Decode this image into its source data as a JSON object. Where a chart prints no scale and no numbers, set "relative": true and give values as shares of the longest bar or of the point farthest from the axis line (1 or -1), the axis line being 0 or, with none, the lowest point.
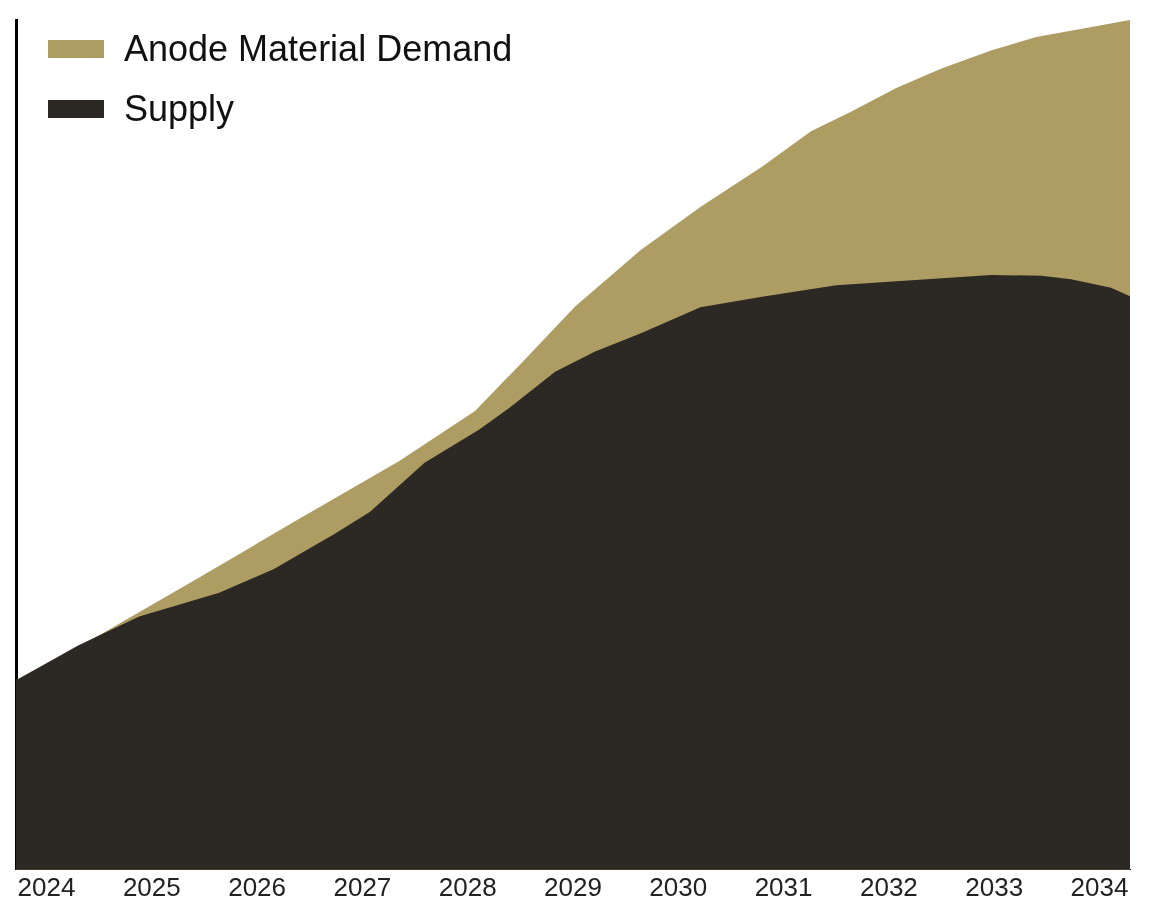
{
  "chart_data": {
    "type": "area",
    "relative": true,
    "legend": "top left",
    "grid": false,
    "xlim": [
      2023.71,
      2034.29
    ],
    "xticks": [
      2024,
      2025,
      2026,
      2027,
      2028,
      2029,
      2030,
      2031,
      2032,
      2033,
      2034
    ],
    "series": [
      {
        "name": "Anode Material Demand",
        "color": "#ad9d63",
        "x": [
          2023.71,
          2024.5,
          2025.45,
          2026.4,
          2027.35,
          2028.07,
          2028.5,
          2029.02,
          2029.64,
          2030.21,
          2030.78,
          2031.26,
          2031.64,
          2032.07,
          2032.5,
          2032.97,
          2033.4,
          2034.29
        ],
        "values": [
          0.223,
          0.276,
          0.344,
          0.413,
          0.481,
          0.54,
          0.595,
          0.663,
          0.729,
          0.78,
          0.826,
          0.869,
          0.892,
          0.92,
          0.943,
          0.964,
          0.98,
          1.0
        ]
      },
      {
        "name": "Supply",
        "color": "#2c2924",
        "x": [
          2023.71,
          2024.3,
          2024.88,
          2025.64,
          2026.16,
          2026.73,
          2027.07,
          2027.59,
          2028.11,
          2028.4,
          2028.83,
          2029.21,
          2029.64,
          2030.21,
          2030.78,
          2031.5,
          2032.11,
          2032.97,
          2033.45,
          2033.73,
          2034.11,
          2034.29
        ],
        "values": [
          0.223,
          0.264,
          0.298,
          0.326,
          0.354,
          0.395,
          0.421,
          0.479,
          0.518,
          0.544,
          0.586,
          0.61,
          0.631,
          0.662,
          0.674,
          0.688,
          0.693,
          0.7,
          0.699,
          0.695,
          0.685,
          0.675
        ]
      }
    ]
  }
}
